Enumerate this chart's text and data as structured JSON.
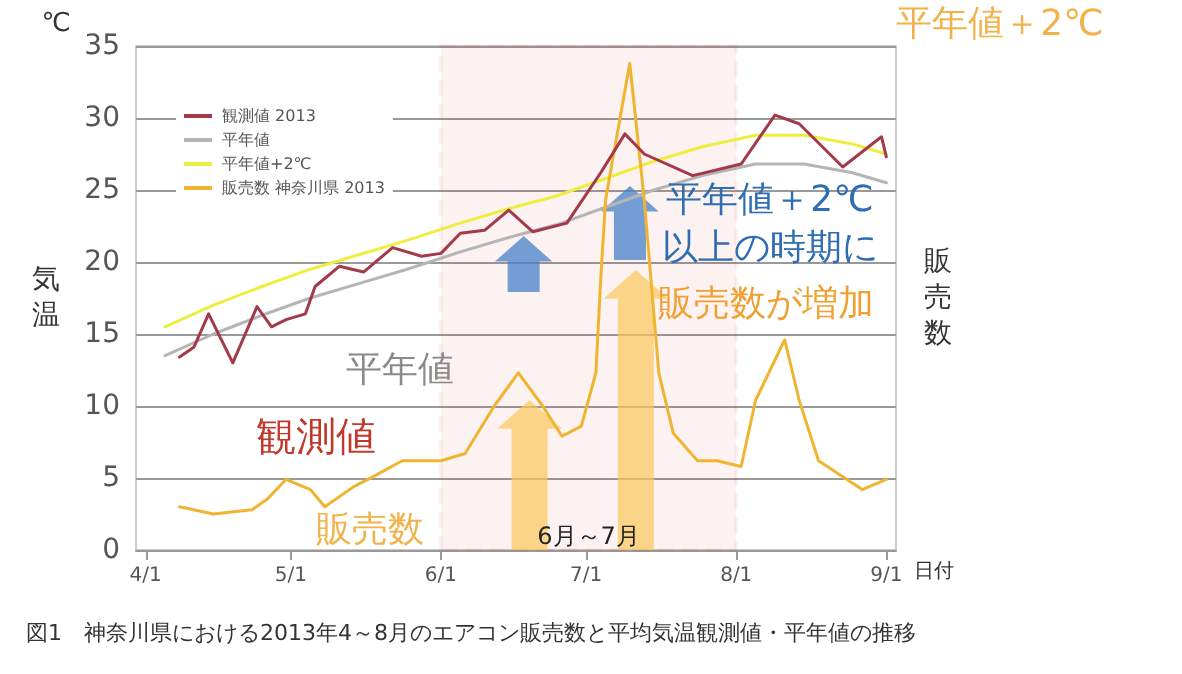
{
  "chart_data": {
    "type": "line",
    "title": "図1　神奈川県における2013年4～8月のエアコン販売数と平均気温観測値・平年値の推移",
    "xlabel": "日付",
    "ylabel": "気温",
    "y2label": "販売数",
    "xlim": [
      "2013-03-30",
      "2013-09-03"
    ],
    "xticks": [
      {
        "value": "2013-04-01",
        "label": "4/1"
      },
      {
        "value": "2013-05-01",
        "label": "5/1"
      },
      {
        "value": "2013-06-01",
        "label": "6/1"
      },
      {
        "value": "2013-07-01",
        "label": "7/1"
      },
      {
        "value": "2013-08-01",
        "label": "8/1"
      },
      {
        "value": "2013-09-01",
        "label": "9/1"
      }
    ],
    "ylim": [
      0,
      35
    ],
    "yticks": [
      0,
      5,
      10,
      15,
      20,
      25,
      30,
      35
    ],
    "grid": "y",
    "legend": "top left",
    "marker": "none",
    "line_style": "solid",
    "series": [
      {
        "name": "観測値 2013",
        "color": "#a33a4a",
        "x": [
          "2013-04-08",
          "2013-04-11",
          "2013-04-14",
          "2013-04-19",
          "2013-04-24",
          "2013-04-27",
          "2013-04-30",
          "2013-05-04",
          "2013-05-06",
          "2013-05-11",
          "2013-05-16",
          "2013-05-22",
          "2013-05-28",
          "2013-06-01",
          "2013-06-05",
          "2013-06-10",
          "2013-06-15",
          "2013-06-20",
          "2013-06-27",
          "2013-07-04",
          "2013-07-09",
          "2013-07-13",
          "2013-07-23",
          "2013-08-02",
          "2013-08-09",
          "2013-08-14",
          "2013-08-23",
          "2013-08-31",
          "2013-09-01"
        ],
        "values": [
          13.4,
          14.1,
          16.4,
          13,
          16.9,
          15.5,
          16,
          16.4,
          18.3,
          19.7,
          19.3,
          21,
          20.4,
          20.6,
          22,
          22.2,
          23.6,
          22.1,
          22.7,
          26.2,
          28.9,
          27.5,
          26,
          26.8,
          30.2,
          29.6,
          26.6,
          28.7,
          27.3
        ]
      },
      {
        "name": "平年値",
        "color": "#b5b5b5",
        "x": [
          "2013-04-05",
          "2013-04-15",
          "2013-04-25",
          "2013-05-05",
          "2013-05-15",
          "2013-05-25",
          "2013-06-05",
          "2013-06-15",
          "2013-06-25",
          "2013-07-05",
          "2013-07-15",
          "2013-07-25",
          "2013-08-05",
          "2013-08-15",
          "2013-08-25",
          "2013-09-01"
        ],
        "values": [
          13.5,
          15,
          16.3,
          17.5,
          18.5,
          19.5,
          20.7,
          21.7,
          22.6,
          23.8,
          25,
          26,
          26.8,
          26.8,
          26.2,
          25.5
        ]
      },
      {
        "name": "平年値+2℃",
        "color": "#eeee40",
        "x": [
          "2013-04-05",
          "2013-04-15",
          "2013-04-25",
          "2013-05-05",
          "2013-05-15",
          "2013-05-25",
          "2013-06-05",
          "2013-06-15",
          "2013-06-25",
          "2013-07-05",
          "2013-07-15",
          "2013-07-25",
          "2013-08-05",
          "2013-08-15",
          "2013-08-25",
          "2013-09-01"
        ],
        "values": [
          15.5,
          17,
          18.3,
          19.5,
          20.5,
          21.5,
          22.7,
          23.7,
          24.6,
          25.8,
          27,
          28,
          28.8,
          28.8,
          28.2,
          27.5
        ]
      },
      {
        "name": "販売数 神奈川県 2013",
        "color": "#f0b530",
        "x": [
          "2013-04-08",
          "2013-04-15",
          "2013-04-23",
          "2013-04-26",
          "2013-04-30",
          "2013-05-05",
          "2013-05-08",
          "2013-05-14",
          "2013-05-18",
          "2013-05-24",
          "2013-06-01",
          "2013-06-06",
          "2013-06-12",
          "2013-06-17",
          "2013-06-22",
          "2013-06-26",
          "2013-06-30",
          "2013-07-03",
          "2013-07-04",
          "2013-07-05",
          "2013-07-10",
          "2013-07-13",
          "2013-07-16",
          "2013-07-19",
          "2013-07-24",
          "2013-07-28",
          "2013-08-02",
          "2013-08-05",
          "2013-08-11",
          "2013-08-14",
          "2013-08-18",
          "2013-08-27",
          "2013-09-01"
        ],
        "values": [
          3,
          2.5,
          2.8,
          3.5,
          4.9,
          4.2,
          3,
          4.4,
          5.1,
          6.2,
          6.2,
          6.7,
          10,
          12.3,
          10,
          7.9,
          8.6,
          12.3,
          18.8,
          24.3,
          33.8,
          24.3,
          12.3,
          8.1,
          6.2,
          6.2,
          5.8,
          10.4,
          14.6,
          10.4,
          6.2,
          4.2,
          4.9
        ]
      }
    ],
    "bands": [
      {
        "axis": "x",
        "from": "2013-06-01",
        "to": "2013-08-01",
        "label": "6月～7月",
        "color": "#e02020"
      }
    ],
    "annotations": [
      "℃",
      "平年値＋2℃",
      "平年値",
      "観測値",
      "販売数",
      "平年値＋2℃\n以上の時期に",
      "販売数が増加"
    ]
  }
}
